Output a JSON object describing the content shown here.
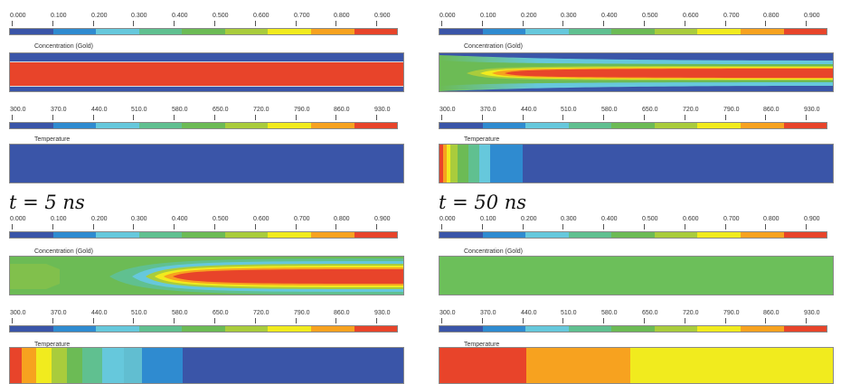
{
  "colors": {
    "scale": [
      "#3a55a8",
      "#2f8bd0",
      "#66c8dc",
      "#60c090",
      "#6cbb55",
      "#a9cc3c",
      "#f1eb1e",
      "#f7a21f",
      "#e8442a"
    ],
    "blue": "#3a55a8",
    "green": "#6cbf5a",
    "red": "#e8442a",
    "orange": "#f7a21f",
    "yellow": "#f1eb1e",
    "cyan": "#66c8dc"
  },
  "concentration_scale": {
    "label": "Concentration (Gold)",
    "ticks": [
      "0.000",
      "0.100",
      "0.200",
      "0.300",
      "0.400",
      "0.500",
      "0.600",
      "0.700",
      "0.800",
      "0.900"
    ]
  },
  "temperature_scale": {
    "label": "Temperature",
    "ticks": [
      "300.0",
      "370.0",
      "440.0",
      "510.0",
      "580.0",
      "650.0",
      "720.0",
      "790.0",
      "860.0",
      "930.0"
    ]
  },
  "time_labels": {
    "t5": "t = 5 ns",
    "t50": "t = 50 ns"
  }
}
